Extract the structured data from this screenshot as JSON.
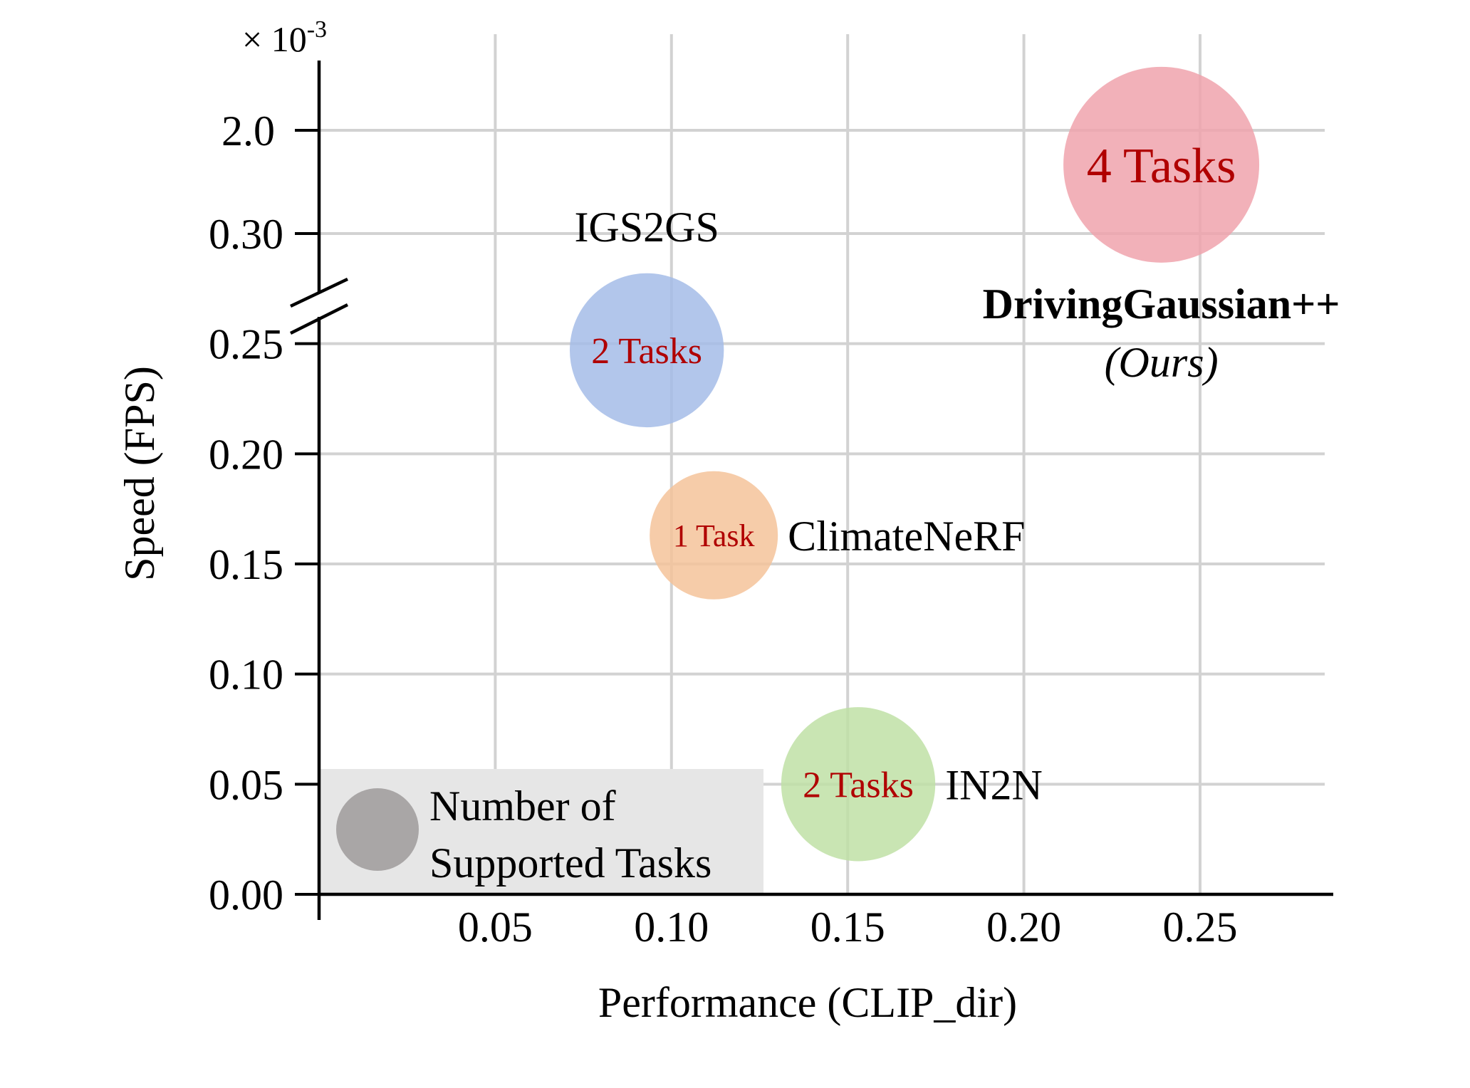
{
  "chart_data": {
    "type": "scatter",
    "title": "",
    "xlabel": "Performance (CLIP_dir)",
    "ylabel": "Speed (FPS)",
    "xlim": [
      0.0,
      0.29
    ],
    "x_ticks": [
      {
        "value": 0.05,
        "label": "0.05"
      },
      {
        "value": 0.1,
        "label": "0.10"
      },
      {
        "value": 0.15,
        "label": "0.15"
      },
      {
        "value": 0.2,
        "label": "0.20"
      },
      {
        "value": 0.25,
        "label": "0.25"
      }
    ],
    "y_lower_segment": {
      "ylim": [
        0.0,
        0.3
      ],
      "ticks": [
        {
          "value": 0.0,
          "label": "0.00"
        },
        {
          "value": 0.05,
          "label": "0.05"
        },
        {
          "value": 0.1,
          "label": "0.10"
        },
        {
          "value": 0.15,
          "label": "0.15"
        },
        {
          "value": 0.2,
          "label": "0.20"
        },
        {
          "value": 0.25,
          "label": "0.25"
        },
        {
          "value": 0.3,
          "label": "0.30"
        }
      ]
    },
    "y_upper_segment": {
      "multiplier_label": "× 10",
      "multiplier_exponent": "-3",
      "ticks": [
        {
          "value": 2.0,
          "label": "2.0"
        }
      ]
    },
    "axis_break": true,
    "grid": true,
    "points": [
      {
        "name": "DrivingGaussian++",
        "subname": "(Ours)",
        "x": 0.239,
        "y": 1.87,
        "segment": "upper",
        "tasks": 4,
        "bubble_label": "4 Tasks",
        "color": "#f0a3ad",
        "name_style": "bold",
        "name_anchor": "below"
      },
      {
        "name": "IGS2GS",
        "subname": "",
        "x": 0.093,
        "y": 0.247,
        "segment": "lower",
        "tasks": 2,
        "bubble_label": "2 Tasks",
        "color": "#a4bce8",
        "name_anchor": "above"
      },
      {
        "name": "ClimateNeRF",
        "subname": "",
        "x": 0.112,
        "y": 0.163,
        "segment": "lower",
        "tasks": 1,
        "bubble_label": "1 Task",
        "color": "#f4c39a",
        "name_anchor": "right"
      },
      {
        "name": "IN2N",
        "subname": "",
        "x": 0.153,
        "y": 0.05,
        "segment": "lower",
        "tasks": 2,
        "bubble_label": "2 Tasks",
        "color": "#bfe1a6",
        "name_anchor": "right"
      }
    ],
    "legend": {
      "placement": "bottom-left",
      "label_line1": "Number of",
      "label_line2": "Supported Tasks",
      "marker_color": "#a9a6a6",
      "background": "#e6e6e6"
    },
    "colors": {
      "bubble_text": "#b00000",
      "grid": "#d2d2d2",
      "axis": "#000000"
    }
  }
}
